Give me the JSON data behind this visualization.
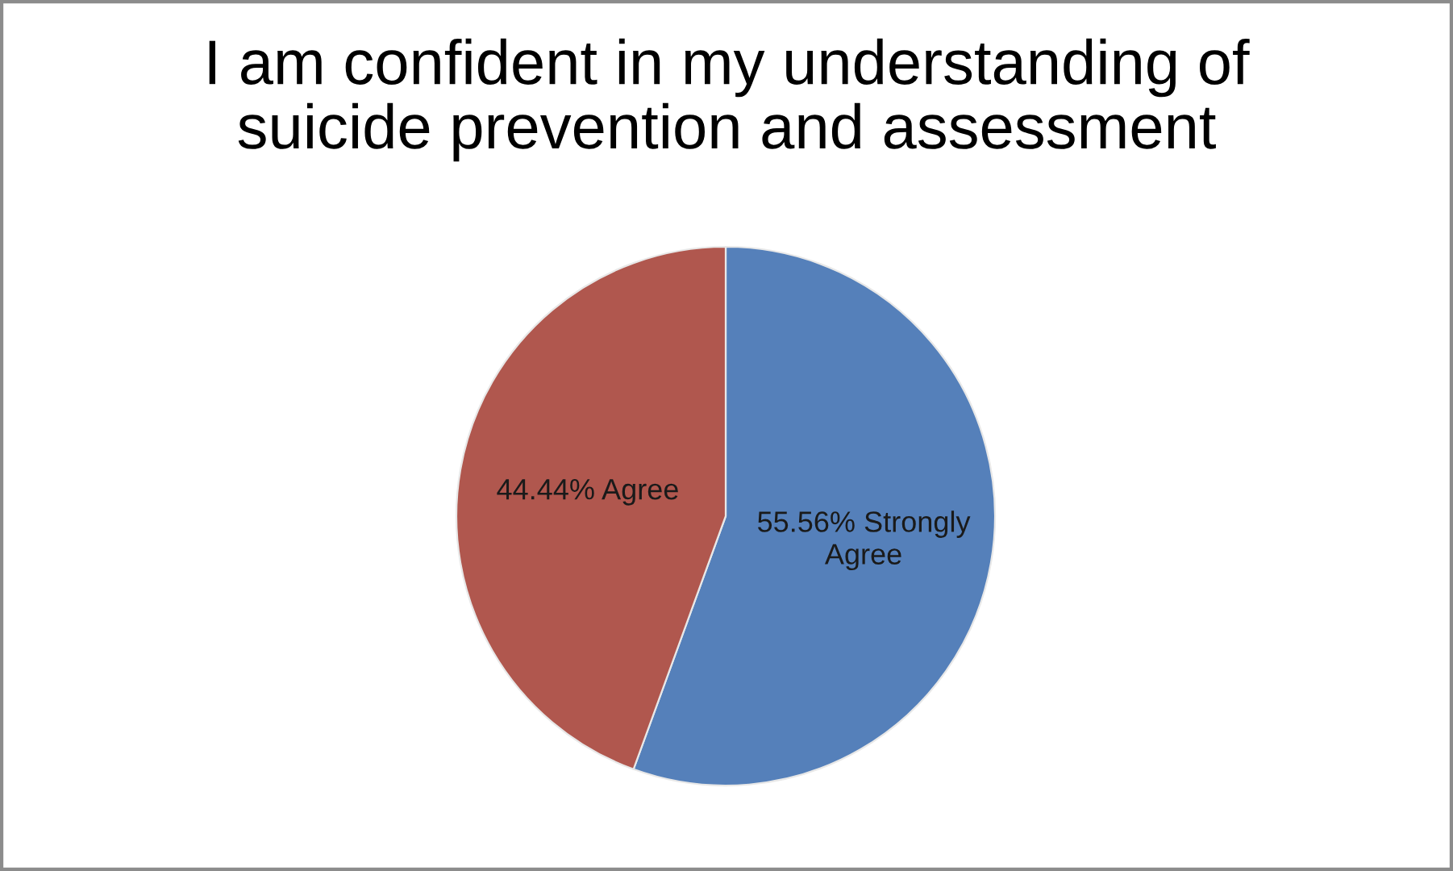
{
  "chart_data": {
    "type": "pie",
    "title": "I am confident in my understanding of suicide prevention and assessment",
    "categories": [
      "Strongly Agree",
      "Agree"
    ],
    "values": [
      55.56,
      44.44
    ],
    "colors": [
      "#5580ba",
      "#b0574e"
    ],
    "value_labels": [
      "55.56%",
      "44.44%"
    ]
  }
}
